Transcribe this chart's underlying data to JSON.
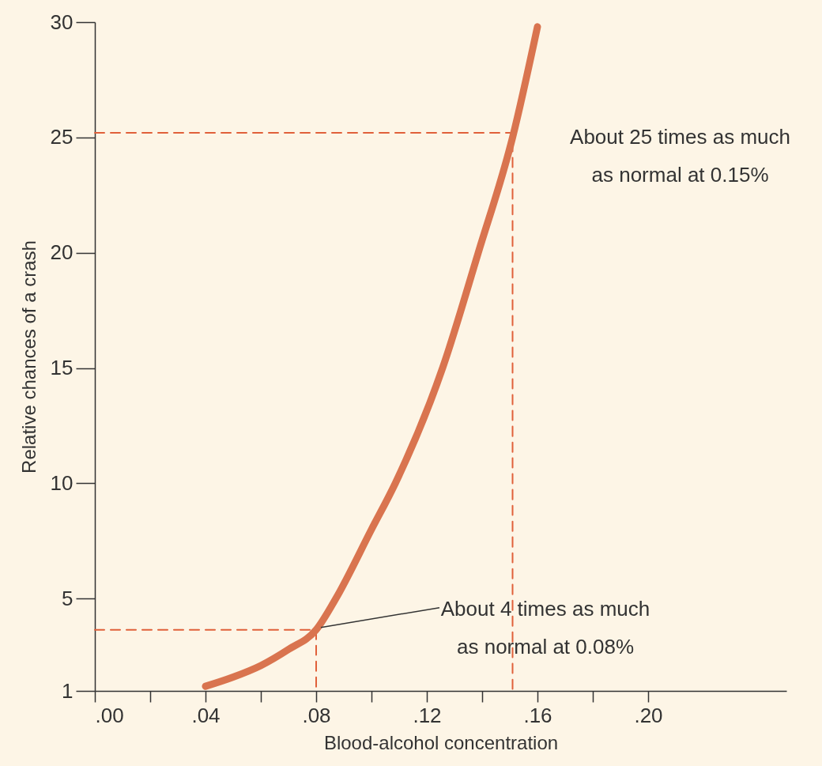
{
  "chart_data": {
    "type": "line",
    "xlabel": "Blood-alcohol concentration",
    "ylabel": "Relative chances of a crash",
    "xlim": [
      0,
      0.25
    ],
    "ylim": [
      1,
      30
    ],
    "xticks": [
      {
        "value": 0,
        "label": ".00"
      },
      {
        "value": 0.02,
        "label": null
      },
      {
        "value": 0.04,
        "label": ".04"
      },
      {
        "value": 0.06,
        "label": null
      },
      {
        "value": 0.08,
        "label": ".08"
      },
      {
        "value": 0.1,
        "label": null
      },
      {
        "value": 0.12,
        "label": ".12"
      },
      {
        "value": 0.14,
        "label": null
      },
      {
        "value": 0.16,
        "label": ".16"
      },
      {
        "value": 0.18,
        "label": null
      },
      {
        "value": 0.2,
        "label": ".20"
      }
    ],
    "yticks": [
      1,
      5,
      10,
      15,
      20,
      25,
      30
    ],
    "series": [
      {
        "color": "#d9744f",
        "x": [
          0.04,
          0.05,
          0.06,
          0.07,
          0.08,
          0.0871,
          0.1,
          0.1086,
          0.1257,
          0.1386,
          0.151,
          0.16
        ],
        "values": [
          1.2,
          1.6,
          2.1,
          2.8,
          3.65,
          5,
          8,
          10,
          15,
          20,
          25,
          29.8
        ]
      },
      {
        "type": "line",
        "line_style": "dashed",
        "color": "#e0603a",
        "x": [
          0,
          0.08,
          0.08
        ],
        "values": [
          3.65,
          3.65,
          1
        ]
      },
      {
        "type": "line",
        "line_style": "dashed",
        "color": "#e0603a",
        "x": [
          0,
          0.151,
          0.151
        ],
        "values": [
          25.2,
          25.2,
          1
        ]
      }
    ],
    "annotations": [
      {
        "text": "About 4 times as much\nas normal at 0.08%",
        "x": 0.08,
        "y": 3.65
      },
      {
        "text": "About 25 times as much\nas normal at 0.15%",
        "x": 0.151,
        "y": 25
      }
    ]
  }
}
